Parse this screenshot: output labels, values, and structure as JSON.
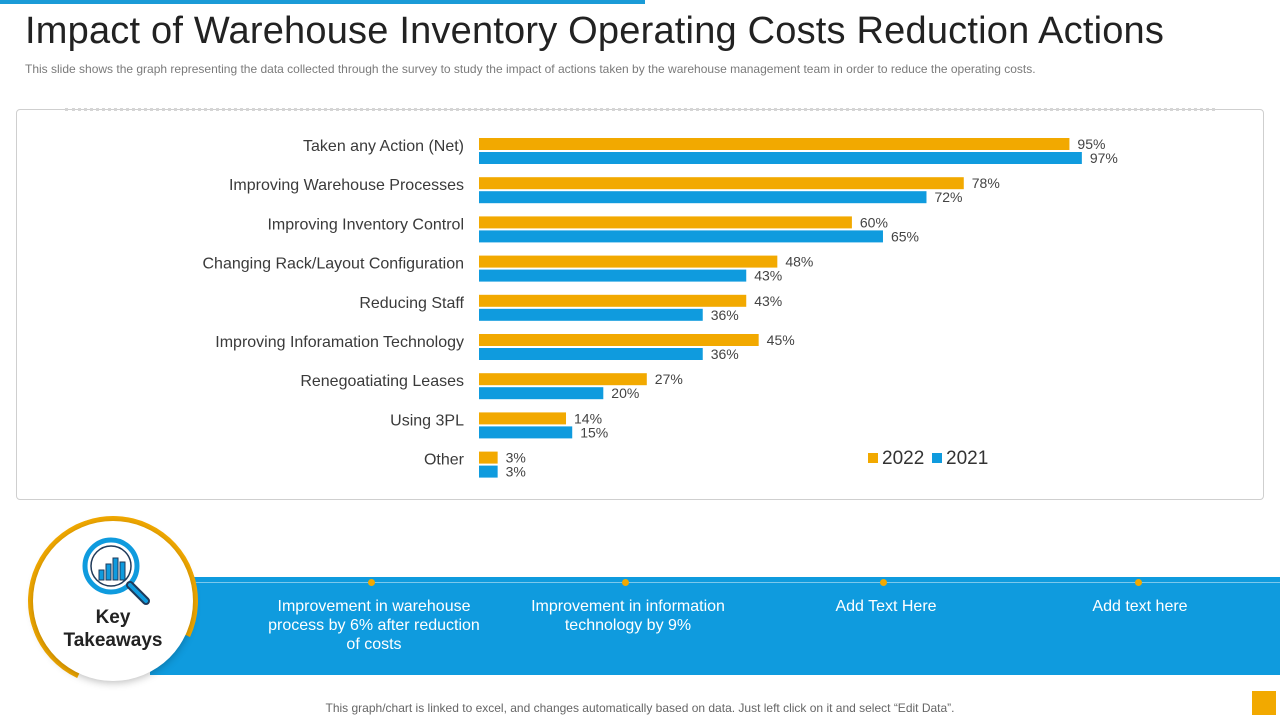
{
  "title": "Impact of Warehouse Inventory Operating Costs Reduction Actions",
  "subtitle": "This slide shows the graph representing the data collected through the survey to study the impact of actions taken by the warehouse management team in order to reduce the operating costs.",
  "colors": {
    "series_2022": "#f2a900",
    "series_2021": "#0f9bde",
    "accent": "#1a9bd7"
  },
  "chart_data": {
    "type": "bar",
    "orientation": "horizontal",
    "title": "",
    "xlabel": "",
    "ylabel": "",
    "xlim": [
      0,
      100
    ],
    "value_suffix": "%",
    "categories": [
      "Taken any Action (Net)",
      "Improving Warehouse Processes",
      "Improving Inventory Control",
      "Changing Rack/Layout Configuration",
      "Reducing Staff",
      "Improving Inforamation Technology",
      "Renegoatiating Leases",
      "Using 3PL",
      "Other"
    ],
    "series": [
      {
        "name": "2022",
        "color": "#f2a900",
        "values": [
          95,
          78,
          60,
          48,
          43,
          45,
          27,
          14,
          3
        ]
      },
      {
        "name": "2021",
        "color": "#0f9bde",
        "values": [
          97,
          72,
          65,
          43,
          36,
          36,
          20,
          15,
          3
        ]
      }
    ],
    "legend_position": "bottom-right",
    "grid": false
  },
  "key_takeaways": {
    "label_line1": "Key",
    "label_line2": "Takeaways",
    "items": [
      {
        "text": "Improvement in warehouse process by 6% after reduction of costs"
      },
      {
        "text": "Improvement in information technology by 9%"
      },
      {
        "text": "Add Text Here"
      },
      {
        "text": "Add text here"
      }
    ]
  },
  "footer": "This graph/chart is linked to excel, and changes automatically based on data. Just left click on it and select “Edit Data”."
}
